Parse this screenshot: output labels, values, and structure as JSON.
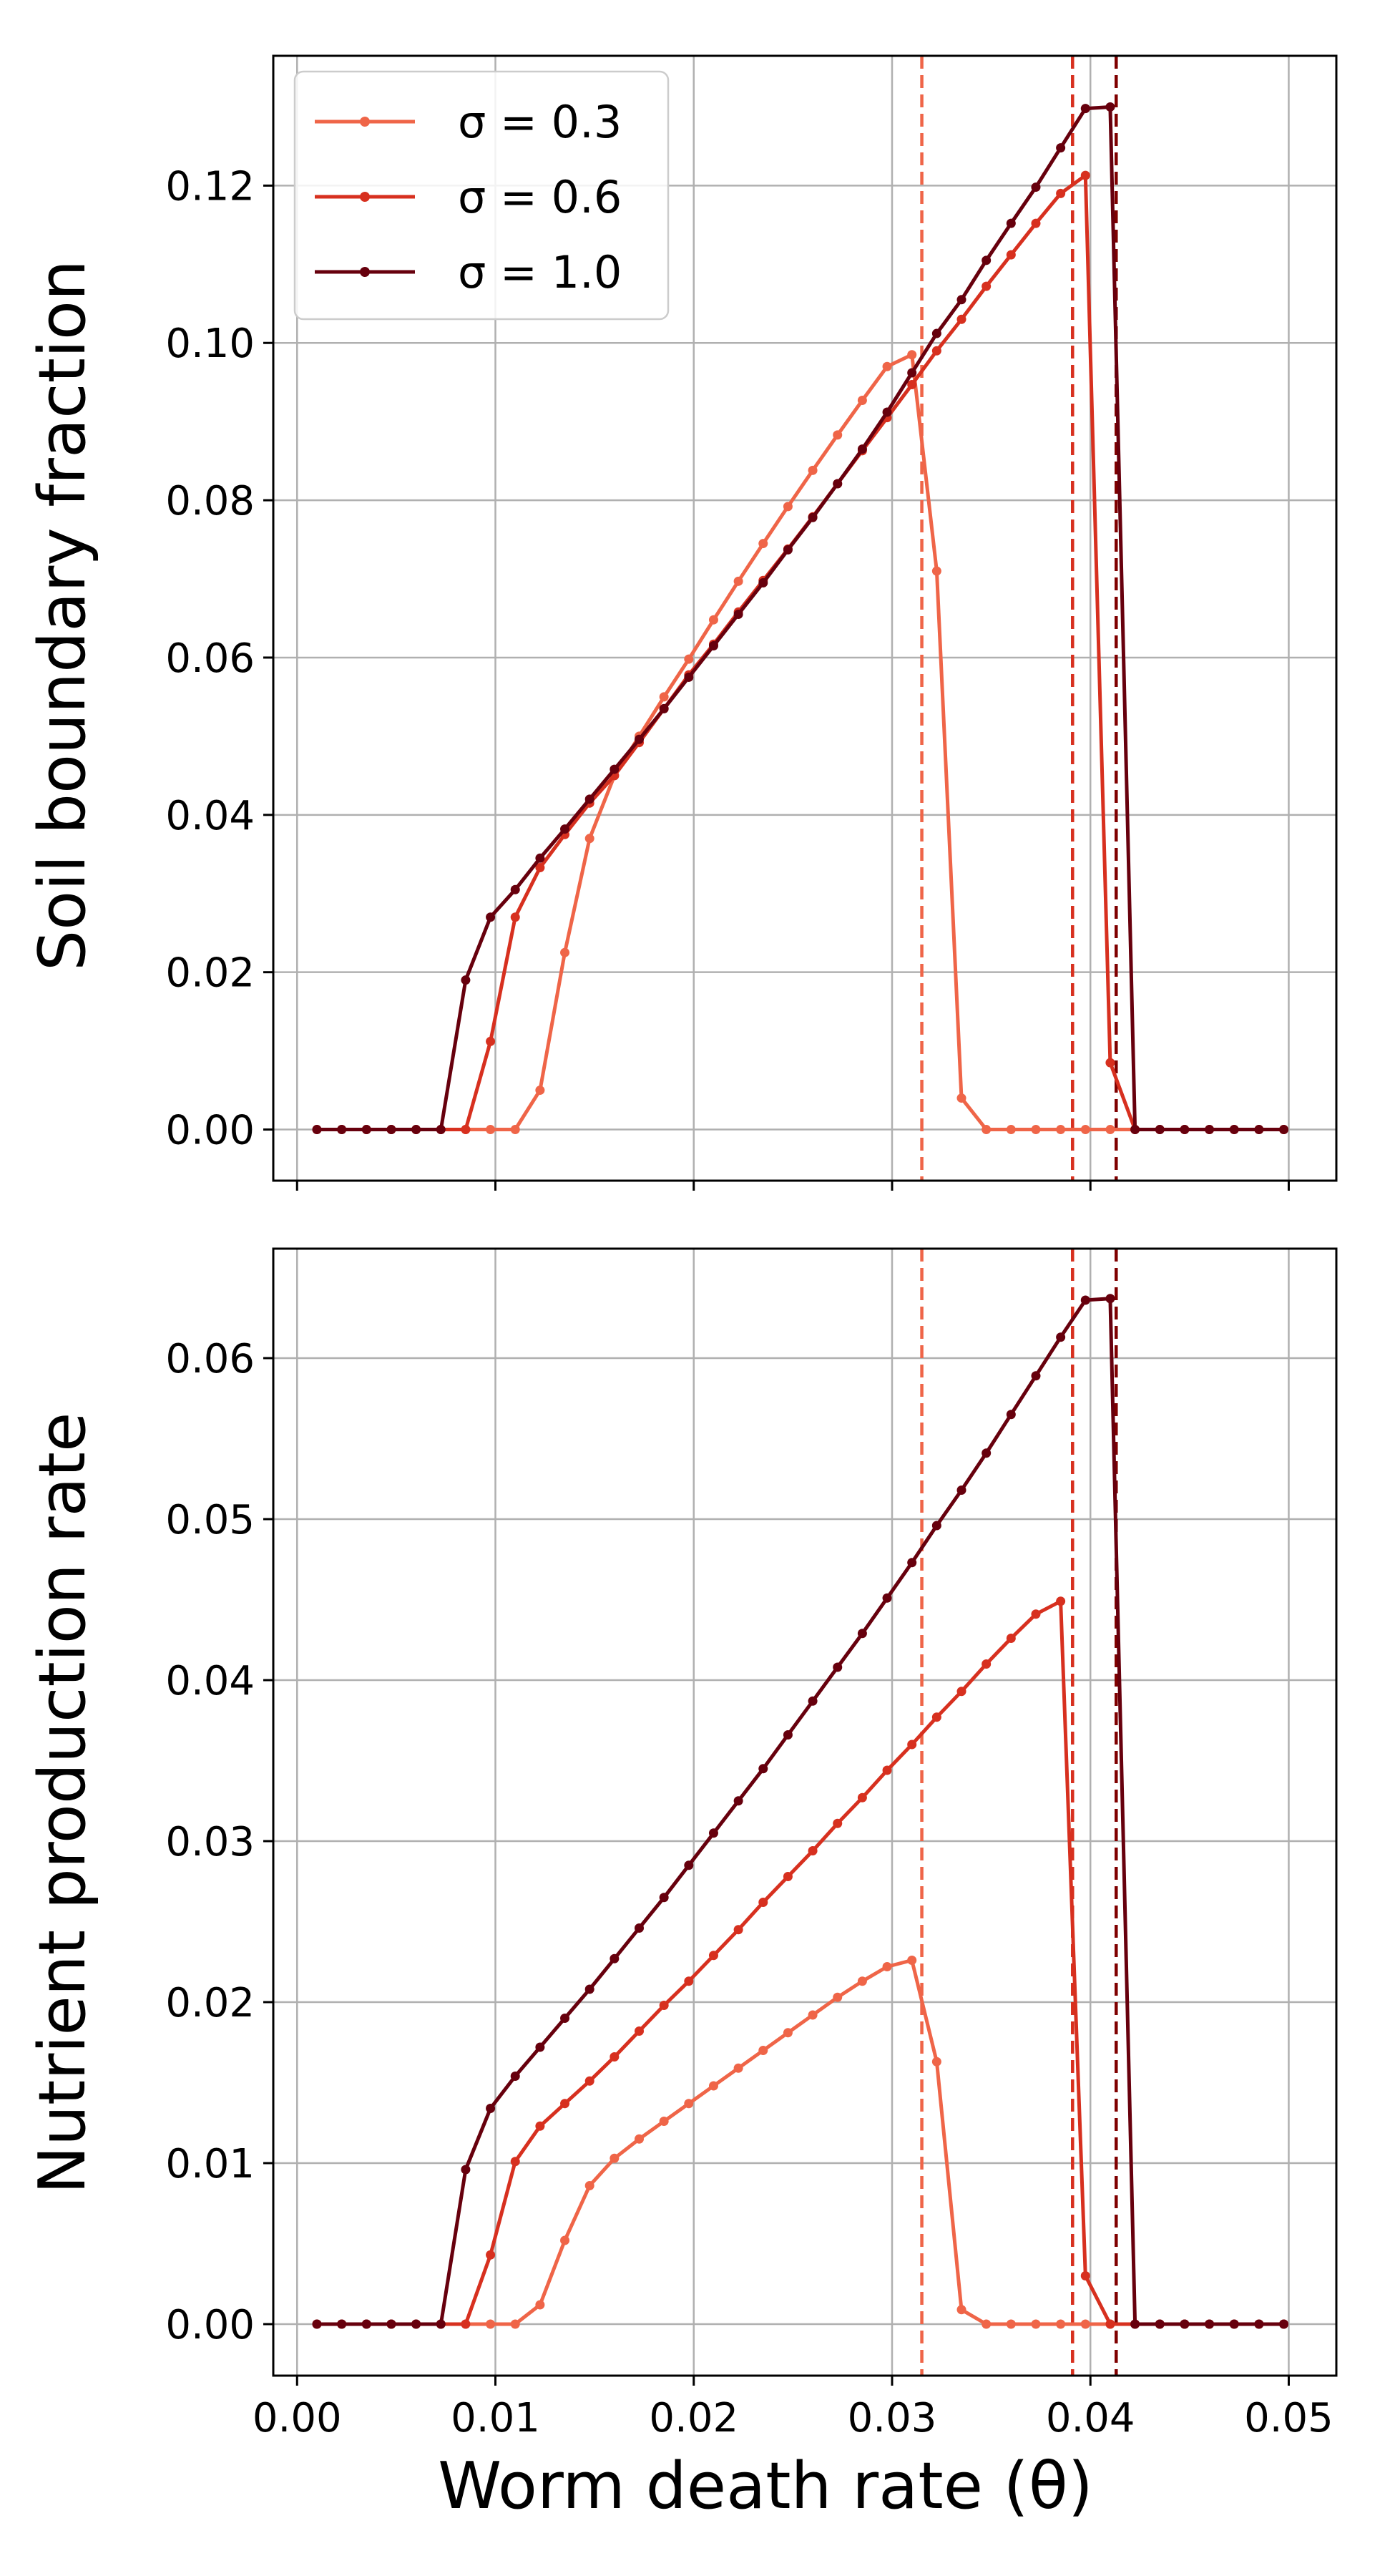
{
  "chart_data": [
    {
      "type": "line",
      "xlabel": "",
      "ylabel": "Soil boundary fraction",
      "xlim": [
        -0.0012,
        0.0524
      ],
      "ylim": [
        -0.0065,
        0.1365
      ],
      "xticks": [
        "0.00",
        "0.01",
        "0.02",
        "0.03",
        "0.04",
        "0.05"
      ],
      "xtick_labels_visible": false,
      "yticks": [
        "0.00",
        "0.02",
        "0.04",
        "0.06",
        "0.08",
        "0.10",
        "0.12"
      ],
      "grid": true,
      "legend": {
        "placement": "upper-left"
      },
      "vlines": [
        {
          "x": 0.0315,
          "color": "#ef6548",
          "style": "dashed"
        },
        {
          "x": 0.0391,
          "color": "#d7301f",
          "style": "dashed"
        },
        {
          "x": 0.0413,
          "color": "#7f0000",
          "style": "dashed"
        }
      ],
      "x": [
        0.001,
        0.00225,
        0.0035,
        0.00475,
        0.006,
        0.00725,
        0.0085,
        0.00975,
        0.011,
        0.01225,
        0.0135,
        0.01475,
        0.016,
        0.01725,
        0.0185,
        0.01975,
        0.021,
        0.02225,
        0.0235,
        0.02475,
        0.026,
        0.02725,
        0.0285,
        0.02975,
        0.031,
        0.03225,
        0.0335,
        0.03475,
        0.036,
        0.03725,
        0.0385,
        0.03975,
        0.041,
        0.04225,
        0.0435,
        0.04475,
        0.046,
        0.04725,
        0.0485,
        0.04975
      ],
      "series": [
        {
          "name": "σ = 0.3",
          "color": "#ef6548",
          "values": [
            0,
            0,
            0,
            0,
            0,
            0,
            0,
            0,
            0,
            0.005,
            0.0225,
            0.037,
            0.045,
            0.05,
            0.055,
            0.0598,
            0.0648,
            0.0697,
            0.0745,
            0.0792,
            0.0838,
            0.0883,
            0.0927,
            0.097,
            0.0985,
            0.071,
            0.004,
            0,
            0,
            0,
            0,
            0,
            0,
            0,
            0,
            0,
            0,
            0,
            0,
            0
          ]
        },
        {
          "name": "σ = 0.6",
          "color": "#d7301f",
          "values": [
            0,
            0,
            0,
            0,
            0,
            0,
            0,
            0.0112,
            0.027,
            0.0333,
            0.0375,
            0.0415,
            0.045,
            0.0492,
            0.0535,
            0.0578,
            0.0617,
            0.0658,
            0.0698,
            0.0738,
            0.0779,
            0.0821,
            0.0863,
            0.0905,
            0.0947,
            0.099,
            0.103,
            0.1072,
            0.1112,
            0.1152,
            0.119,
            0.1213,
            0.0085,
            0,
            0,
            0,
            0,
            0,
            0,
            0
          ]
        },
        {
          "name": "σ = 1.0",
          "color": "#67000d",
          "values": [
            0,
            0,
            0,
            0,
            0,
            0,
            0.019,
            0.027,
            0.0305,
            0.0345,
            0.0382,
            0.042,
            0.0458,
            0.0496,
            0.0535,
            0.0575,
            0.0615,
            0.0655,
            0.0695,
            0.0737,
            0.0778,
            0.0821,
            0.0865,
            0.0912,
            0.0962,
            0.1012,
            0.1055,
            0.1105,
            0.1152,
            0.1198,
            0.1248,
            0.1298,
            0.13,
            0,
            0,
            0,
            0,
            0,
            0,
            0
          ]
        }
      ]
    },
    {
      "type": "line",
      "xlabel": "Worm death rate (θ)",
      "ylabel": "Nutrient production rate",
      "xlim": [
        -0.0012,
        0.0524
      ],
      "ylim": [
        -0.0032,
        0.0668
      ],
      "xticks": [
        "0.00",
        "0.01",
        "0.02",
        "0.03",
        "0.04",
        "0.05"
      ],
      "yticks": [
        "0.00",
        "0.01",
        "0.02",
        "0.03",
        "0.04",
        "0.05",
        "0.06"
      ],
      "grid": true,
      "vlines": [
        {
          "x": 0.0315,
          "color": "#ef6548",
          "style": "dashed"
        },
        {
          "x": 0.0391,
          "color": "#d7301f",
          "style": "dashed"
        },
        {
          "x": 0.0413,
          "color": "#7f0000",
          "style": "dashed"
        }
      ],
      "x": [
        0.001,
        0.00225,
        0.0035,
        0.00475,
        0.006,
        0.00725,
        0.0085,
        0.00975,
        0.011,
        0.01225,
        0.0135,
        0.01475,
        0.016,
        0.01725,
        0.0185,
        0.01975,
        0.021,
        0.02225,
        0.0235,
        0.02475,
        0.026,
        0.02725,
        0.0285,
        0.02975,
        0.031,
        0.03225,
        0.0335,
        0.03475,
        0.036,
        0.03725,
        0.0385,
        0.03975,
        0.041,
        0.04225,
        0.0435,
        0.04475,
        0.046,
        0.04725,
        0.0485,
        0.04975
      ],
      "series": [
        {
          "name": "σ = 0.3",
          "color": "#ef6548",
          "values": [
            0,
            0,
            0,
            0,
            0,
            0,
            0,
            0,
            0,
            0.0012,
            0.0052,
            0.0086,
            0.0103,
            0.0115,
            0.0126,
            0.0137,
            0.0148,
            0.0159,
            0.017,
            0.0181,
            0.0192,
            0.0203,
            0.0213,
            0.0222,
            0.0226,
            0.0163,
            0.0009,
            0,
            0,
            0,
            0,
            0,
            0,
            0,
            0,
            0,
            0,
            0,
            0,
            0
          ]
        },
        {
          "name": "σ = 0.6",
          "color": "#d7301f",
          "values": [
            0,
            0,
            0,
            0,
            0,
            0,
            0,
            0.0043,
            0.0101,
            0.0123,
            0.0137,
            0.0151,
            0.0166,
            0.0182,
            0.0198,
            0.0213,
            0.0229,
            0.0245,
            0.0262,
            0.0278,
            0.0294,
            0.0311,
            0.0327,
            0.0344,
            0.036,
            0.0377,
            0.0393,
            0.041,
            0.0426,
            0.0441,
            0.0449,
            0.003,
            0,
            0,
            0,
            0,
            0,
            0,
            0,
            0
          ]
        },
        {
          "name": "σ = 1.0",
          "color": "#67000d",
          "values": [
            0,
            0,
            0,
            0,
            0,
            0,
            0.0096,
            0.0134,
            0.0154,
            0.0172,
            0.019,
            0.0208,
            0.0227,
            0.0246,
            0.0265,
            0.0285,
            0.0305,
            0.0325,
            0.0345,
            0.0366,
            0.0387,
            0.0408,
            0.0429,
            0.0451,
            0.0473,
            0.0496,
            0.0518,
            0.0541,
            0.0565,
            0.0589,
            0.0613,
            0.0636,
            0.0637,
            0,
            0,
            0,
            0,
            0,
            0,
            0
          ]
        }
      ]
    }
  ]
}
